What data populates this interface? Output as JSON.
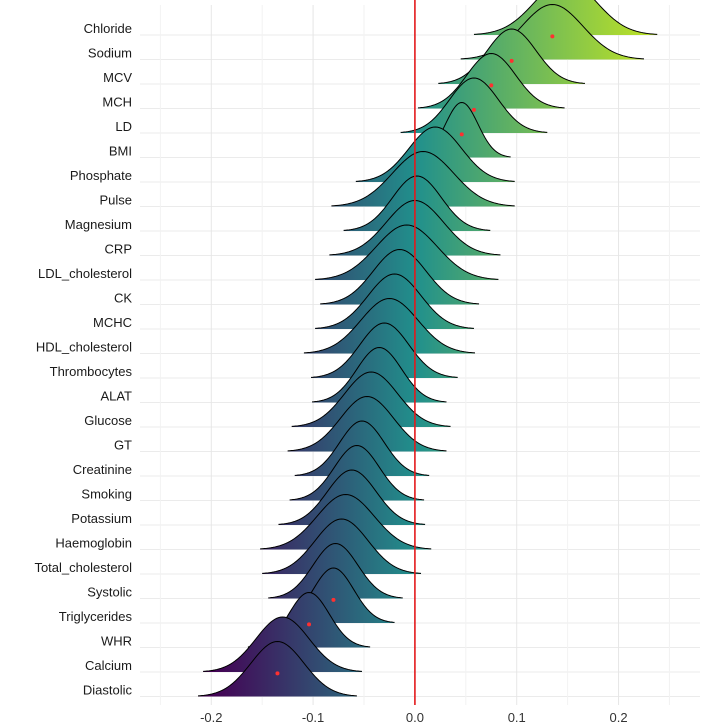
{
  "chart_data": {
    "type": "ridgeline",
    "title": "",
    "xlabel": "",
    "ylabel": "",
    "xlim": [
      -0.27,
      0.28
    ],
    "x_ticks": [
      -0.2,
      -0.1,
      0.0,
      0.1,
      0.2
    ],
    "x_tick_labels": [
      "-0.2",
      "-0.1",
      "0.0",
      "0.1",
      "0.2"
    ],
    "reference_line": {
      "x": 0.0,
      "color": "#e31a1c"
    },
    "fill_gradient": {
      "low": "#440154",
      "mid": "#21908c",
      "high": "#b5de2b"
    },
    "point_color": "#ff3030",
    "grid": true,
    "legend": "none",
    "series": [
      {
        "name": "Chloride",
        "mean": 0.148,
        "sd": 0.03
      },
      {
        "name": "Sodium",
        "mean": 0.135,
        "sd": 0.03
      },
      {
        "name": "MCV",
        "mean": 0.095,
        "sd": 0.024
      },
      {
        "name": "MCH",
        "mean": 0.075,
        "sd": 0.024
      },
      {
        "name": "LD",
        "mean": 0.058,
        "sd": 0.024
      },
      {
        "name": "BMI",
        "mean": 0.046,
        "sd": 0.016
      },
      {
        "name": "Phosphate",
        "mean": 0.02,
        "sd": 0.026
      },
      {
        "name": "Pulse",
        "mean": 0.008,
        "sd": 0.03
      },
      {
        "name": "Magnesium",
        "mean": 0.002,
        "sd": 0.024
      },
      {
        "name": "CRP",
        "mean": 0.0,
        "sd": 0.028
      },
      {
        "name": "LDL_cholesterol",
        "mean": -0.008,
        "sd": 0.03
      },
      {
        "name": "CK",
        "mean": -0.015,
        "sd": 0.026
      },
      {
        "name": "MCHC",
        "mean": -0.02,
        "sd": 0.026
      },
      {
        "name": "HDL_cholesterol",
        "mean": -0.025,
        "sd": 0.028
      },
      {
        "name": "Thrombocytes",
        "mean": -0.03,
        "sd": 0.024
      },
      {
        "name": "ALAT",
        "mean": -0.035,
        "sd": 0.022
      },
      {
        "name": "Glucose",
        "mean": -0.043,
        "sd": 0.026
      },
      {
        "name": "GT",
        "mean": -0.047,
        "sd": 0.026
      },
      {
        "name": "Creatinine",
        "mean": -0.052,
        "sd": 0.022
      },
      {
        "name": "Smoking",
        "mean": -0.057,
        "sd": 0.022
      },
      {
        "name": "Potassium",
        "mean": -0.062,
        "sd": 0.024
      },
      {
        "name": "Haemoglobin",
        "mean": -0.068,
        "sd": 0.028
      },
      {
        "name": "Total_cholesterol",
        "mean": -0.072,
        "sd": 0.026
      },
      {
        "name": "Systolic",
        "mean": -0.078,
        "sd": 0.022
      },
      {
        "name": "Triglycerides",
        "mean": -0.08,
        "sd": 0.02
      },
      {
        "name": "WHR",
        "mean": -0.104,
        "sd": 0.02
      },
      {
        "name": "Calcium",
        "mean": -0.13,
        "sd": 0.026
      },
      {
        "name": "Diastolic",
        "mean": -0.135,
        "sd": 0.026
      }
    ]
  }
}
